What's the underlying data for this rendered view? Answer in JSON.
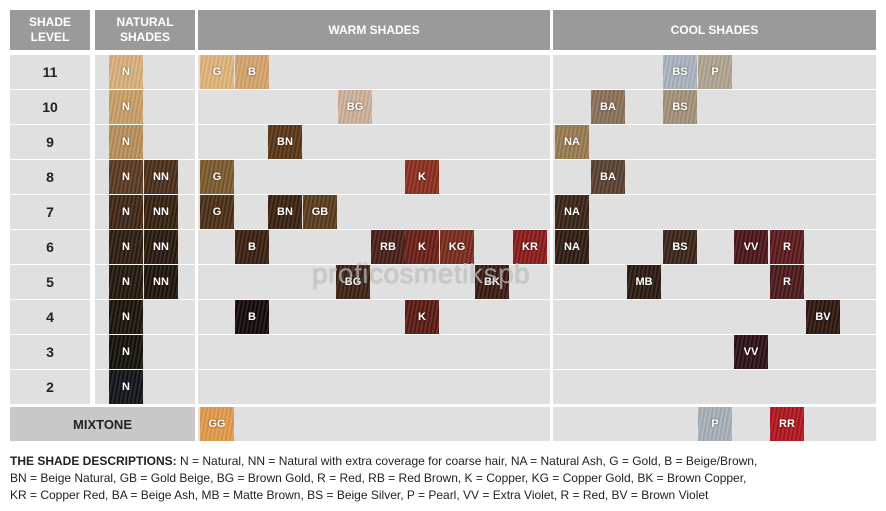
{
  "headers": {
    "shade_level": "SHADE LEVEL",
    "natural": "NATURAL SHADES",
    "warm": "WARM SHADES",
    "cool": "COOL SHADES"
  },
  "levels": [
    "11",
    "10",
    "9",
    "8",
    "7",
    "6",
    "5",
    "4",
    "3",
    "2"
  ],
  "mixtone_label": "MIXTONE",
  "swatches": {
    "natural": [
      {
        "level": "11",
        "label": "N",
        "color": "#d8b07c"
      },
      {
        "level": "10",
        "label": "N",
        "color": "#c89e66"
      },
      {
        "level": "9",
        "label": "N",
        "color": "#b98e5a"
      },
      {
        "level": "8",
        "label": "N",
        "color": "#5a3a20"
      },
      {
        "level": "8",
        "label": "NN",
        "color": "#4a2e18"
      },
      {
        "level": "7",
        "label": "N",
        "color": "#3e2614"
      },
      {
        "level": "7",
        "label": "NN",
        "color": "#36210f"
      },
      {
        "level": "6",
        "label": "N",
        "color": "#2e1c0f"
      },
      {
        "level": "6",
        "label": "NN",
        "color": "#28180c"
      },
      {
        "level": "5",
        "label": "N",
        "color": "#24160b"
      },
      {
        "level": "5",
        "label": "NN",
        "color": "#1f1309"
      },
      {
        "level": "4",
        "label": "N",
        "color": "#1c1209"
      },
      {
        "level": "3",
        "label": "N",
        "color": "#151008"
      },
      {
        "level": "2",
        "label": "N",
        "color": "#101318"
      }
    ],
    "warm": [
      {
        "level": "11",
        "label": "G",
        "color": "#e0b57a"
      },
      {
        "level": "11",
        "label": "B",
        "color": "#d4a46c"
      },
      {
        "level": "10",
        "label": "BG",
        "color": "#ceb09a"
      },
      {
        "level": "9",
        "label": "BN",
        "color": "#5a3414"
      },
      {
        "level": "8",
        "label": "G",
        "color": "#7a5a2c"
      },
      {
        "level": "8",
        "label": "K",
        "color": "#8a2e1c"
      },
      {
        "level": "7",
        "label": "G",
        "color": "#4a2e14"
      },
      {
        "level": "7",
        "label": "BN",
        "color": "#3a200e"
      },
      {
        "level": "7",
        "label": "GB",
        "color": "#5a3a1c"
      },
      {
        "level": "6",
        "label": "B",
        "color": "#3a2010"
      },
      {
        "level": "6",
        "label": "RB",
        "color": "#4a1e16"
      },
      {
        "level": "6",
        "label": "K",
        "color": "#6a1e16"
      },
      {
        "level": "6",
        "label": "KG",
        "color": "#7a2a1c"
      },
      {
        "level": "6",
        "label": "KR",
        "color": "#8a1a1a"
      },
      {
        "level": "5",
        "label": "BG",
        "color": "#3a2214"
      },
      {
        "level": "5",
        "label": "BK",
        "color": "#3a1a10"
      },
      {
        "level": "4",
        "label": "B",
        "color": "#120a06"
      },
      {
        "level": "4",
        "label": "K",
        "color": "#5a1a12"
      }
    ],
    "cool": [
      {
        "level": "11",
        "label": "BS",
        "color": "#aab4c0"
      },
      {
        "level": "11",
        "label": "P",
        "color": "#b0a490"
      },
      {
        "level": "10",
        "label": "BA",
        "color": "#8a7058"
      },
      {
        "level": "10",
        "label": "BS",
        "color": "#a49278"
      },
      {
        "level": "9",
        "label": "NA",
        "color": "#9a7a50"
      },
      {
        "level": "8",
        "label": "BA",
        "color": "#5a4030"
      },
      {
        "level": "7",
        "label": "NA",
        "color": "#3a2414"
      },
      {
        "level": "6",
        "label": "NA",
        "color": "#2e1c10"
      },
      {
        "level": "6",
        "label": "BS",
        "color": "#3a2416"
      },
      {
        "level": "6",
        "label": "VV",
        "color": "#4a1418"
      },
      {
        "level": "6",
        "label": "R",
        "color": "#5a1a1c"
      },
      {
        "level": "5",
        "label": "MB",
        "color": "#2a1a10"
      },
      {
        "level": "5",
        "label": "R",
        "color": "#4a1818"
      },
      {
        "level": "4",
        "label": "BV",
        "color": "#2e160e"
      },
      {
        "level": "3",
        "label": "VV",
        "color": "#2e1014"
      }
    ],
    "mixtone": [
      {
        "label": "GG",
        "color": "#e39a4a"
      },
      {
        "label": "P",
        "color": "#a8b0b8"
      },
      {
        "label": "RR",
        "color": "#b0141e"
      }
    ]
  },
  "watermark": "proficosmetikspb",
  "legend": {
    "title": "THE SHADE DESCRIPTIONS:",
    "line1": " N = Natural, NN = Natural with extra coverage for coarse hair, NA = Natural Ash, G = Gold, B = Beige/Brown,",
    "line2": "BN = Beige Natural, GB = Gold Beige, BG = Brown Gold, R = Red, RB = Red Brown, K = Copper, KG = Copper Gold, BK = Brown Copper,",
    "line3": "KR = Copper Red, BA = Beige Ash, MB = Matte Brown, BS = Beige Silver, P = Pearl, VV = Extra Violet, R = Red, BV = Brown Violet"
  }
}
